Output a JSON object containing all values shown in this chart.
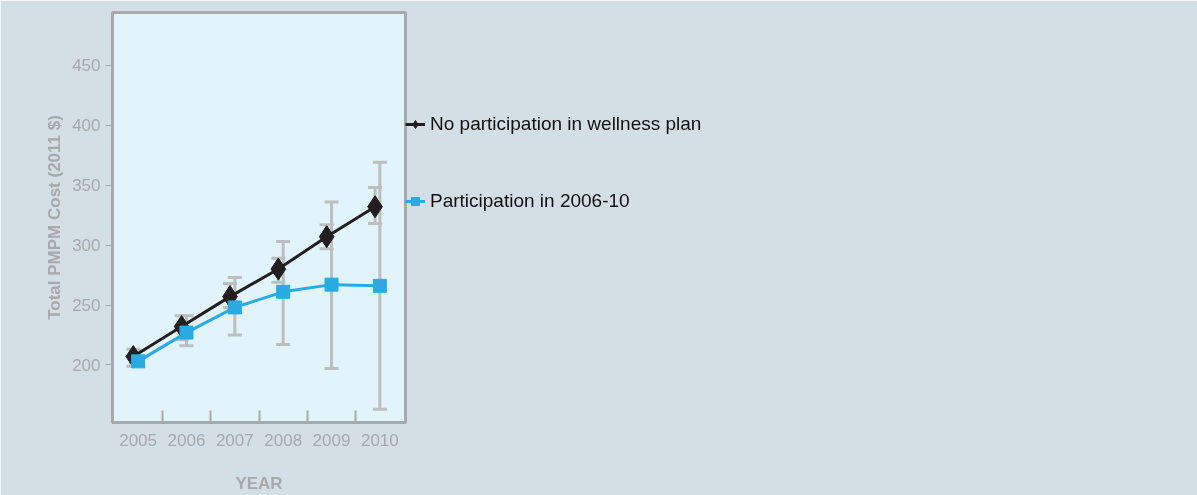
{
  "chart_data": {
    "type": "line",
    "xlabel": "YEAR",
    "ylabel": "Total PMPM Cost (2011 $)",
    "categories": [
      "2005",
      "2006",
      "2007",
      "2008",
      "2009",
      "2010"
    ],
    "series": [
      {
        "name": "No participation in wellness plan",
        "color": "#231f20",
        "marker": "diamond",
        "values": [
          207,
          232,
          257,
          280,
          307,
          332
        ],
        "errors": [
          [
            199,
            213
          ],
          [
            221,
            241
          ],
          [
            248,
            268
          ],
          [
            269,
            289
          ],
          [
            297,
            317
          ],
          [
            318,
            348
          ]
        ]
      },
      {
        "name": "Participation in 2006-10",
        "color": "#29abe2",
        "marker": "square",
        "values": [
          203,
          227,
          248,
          261,
          267,
          266
        ],
        "errors": [
          [
            199,
            212
          ],
          [
            216,
            241
          ],
          [
            225,
            273
          ],
          [
            217,
            303
          ],
          [
            197,
            336
          ],
          [
            163,
            369
          ]
        ]
      }
    ],
    "ylim": [
      152,
      494
    ],
    "yticks": [
      200,
      250,
      300,
      350,
      400,
      450
    ],
    "grid": false,
    "legend": "right"
  }
}
